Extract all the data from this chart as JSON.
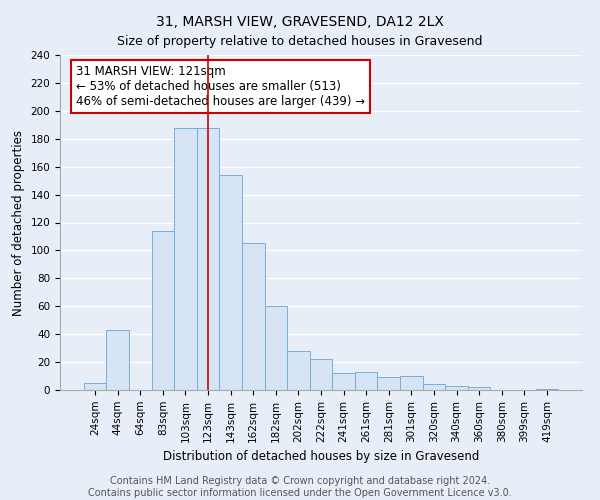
{
  "title": "31, MARSH VIEW, GRAVESEND, DA12 2LX",
  "subtitle": "Size of property relative to detached houses in Gravesend",
  "xlabel": "Distribution of detached houses by size in Gravesend",
  "ylabel": "Number of detached properties",
  "bar_labels": [
    "24sqm",
    "44sqm",
    "64sqm",
    "83sqm",
    "103sqm",
    "123sqm",
    "143sqm",
    "162sqm",
    "182sqm",
    "202sqm",
    "222sqm",
    "241sqm",
    "261sqm",
    "281sqm",
    "301sqm",
    "320sqm",
    "340sqm",
    "360sqm",
    "380sqm",
    "399sqm",
    "419sqm"
  ],
  "bar_values": [
    5,
    43,
    0,
    114,
    188,
    188,
    154,
    105,
    60,
    28,
    22,
    12,
    13,
    9,
    10,
    4,
    3,
    2,
    0,
    0,
    1
  ],
  "bar_color": "#d6e4f5",
  "bar_edge_color": "#7aadd4",
  "vline_x_index": 5,
  "vline_color": "#cc0000",
  "annotation_line1": "31 MARSH VIEW: 121sqm",
  "annotation_line2": "← 53% of detached houses are smaller (513)",
  "annotation_line3": "46% of semi-detached houses are larger (439) →",
  "annotation_box_color": "white",
  "annotation_box_edge_color": "#cc0000",
  "ylim": [
    0,
    240
  ],
  "yticks": [
    0,
    20,
    40,
    60,
    80,
    100,
    120,
    140,
    160,
    180,
    200,
    220,
    240
  ],
  "footer_line1": "Contains HM Land Registry data © Crown copyright and database right 2024.",
  "footer_line2": "Contains public sector information licensed under the Open Government Licence v3.0.",
  "bg_color": "#e8eef7",
  "plot_bg_color": "#e8eef7",
  "grid_color": "#ffffff",
  "title_fontsize": 10,
  "subtitle_fontsize": 9,
  "axis_label_fontsize": 8.5,
  "tick_fontsize": 7.5,
  "annotation_fontsize": 8.5,
  "footer_fontsize": 7
}
